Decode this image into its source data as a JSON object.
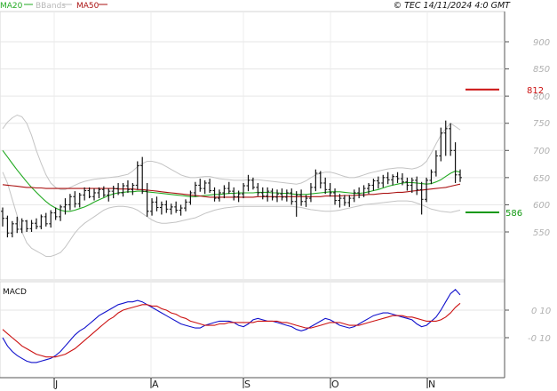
{
  "header": {
    "legend": [
      {
        "label": "MA20",
        "color": "#22aa22"
      },
      {
        "label": "BBands",
        "color": "#b8b8b8"
      },
      {
        "label": "MA50",
        "color": "#aa1111"
      }
    ],
    "copyright": "© TEC 14/11/2024 4:0 GMT"
  },
  "price_panel": {
    "y_ticks": [
      "900",
      "850",
      "800",
      "750",
      "700",
      "650",
      "600",
      "550"
    ],
    "resistance": {
      "label": "812",
      "value": 812,
      "color": "#cc1111"
    },
    "support": {
      "label": "586",
      "value": 586,
      "color": "#119911"
    }
  },
  "macd_panel": {
    "title": "MACD",
    "y_ticks": [
      "0 10",
      "-0 10"
    ]
  },
  "x_axis": {
    "months": [
      "J",
      "A",
      "S",
      "O",
      "N"
    ]
  },
  "chart_data": [
    {
      "type": "candlestick",
      "ylim": [
        470,
        980
      ],
      "grid": true,
      "legend_placement": "top-left",
      "months": [
        "J",
        "A",
        "S",
        "O",
        "N"
      ],
      "ohlc": [
        [
          588,
          595,
          560,
          575
        ],
        [
          575,
          580,
          540,
          548
        ],
        [
          548,
          570,
          540,
          565
        ],
        [
          565,
          578,
          548,
          555
        ],
        [
          555,
          575,
          548,
          570
        ],
        [
          570,
          572,
          550,
          556
        ],
        [
          556,
          572,
          550,
          566
        ],
        [
          566,
          575,
          555,
          560
        ],
        [
          560,
          582,
          555,
          578
        ],
        [
          578,
          585,
          560,
          565
        ],
        [
          565,
          590,
          558,
          585
        ],
        [
          585,
          595,
          572,
          578
        ],
        [
          578,
          600,
          570,
          596
        ],
        [
          596,
          612,
          582,
          600
        ],
        [
          600,
          620,
          590,
          615
        ],
        [
          615,
          625,
          595,
          602
        ],
        [
          602,
          622,
          595,
          618
        ],
        [
          618,
          632,
          608,
          626
        ],
        [
          626,
          632,
          612,
          615
        ],
        [
          615,
          630,
          608,
          622
        ],
        [
          622,
          632,
          612,
          628
        ],
        [
          628,
          634,
          614,
          618
        ],
        [
          618,
          630,
          606,
          625
        ],
        [
          625,
          635,
          612,
          630
        ],
        [
          630,
          640,
          618,
          622
        ],
        [
          622,
          640,
          615,
          635
        ],
        [
          635,
          645,
          622,
          628
        ],
        [
          628,
          640,
          618,
          636
        ],
        [
          636,
          680,
          628,
          672
        ],
        [
          672,
          688,
          620,
          625
        ],
        [
          625,
          640,
          578,
          588
        ],
        [
          588,
          612,
          580,
          605
        ],
        [
          605,
          615,
          588,
          595
        ],
        [
          595,
          606,
          582,
          600
        ],
        [
          600,
          608,
          585,
          592
        ],
        [
          592,
          602,
          582,
          596
        ],
        [
          596,
          606,
          585,
          590
        ],
        [
          590,
          600,
          580,
          594
        ],
        [
          594,
          610,
          588,
          605
        ],
        [
          605,
          626,
          600,
          622
        ],
        [
          622,
          642,
          615,
          636
        ],
        [
          636,
          648,
          624,
          630
        ],
        [
          630,
          645,
          620,
          640
        ],
        [
          640,
          648,
          622,
          626
        ],
        [
          626,
          632,
          606,
          612
        ],
        [
          612,
          628,
          606,
          622
        ],
        [
          622,
          636,
          612,
          630
        ],
        [
          630,
          642,
          620,
          625
        ],
        [
          625,
          632,
          608,
          615
        ],
        [
          615,
          626,
          605,
          620
        ],
        [
          620,
          640,
          612,
          635
        ],
        [
          635,
          655,
          625,
          645
        ],
        [
          645,
          650,
          628,
          632
        ],
        [
          632,
          640,
          616,
          622
        ],
        [
          622,
          632,
          610,
          616
        ],
        [
          616,
          632,
          606,
          625
        ],
        [
          625,
          630,
          608,
          614
        ],
        [
          614,
          628,
          605,
          620
        ],
        [
          620,
          630,
          608,
          614
        ],
        [
          614,
          628,
          606,
          622
        ],
        [
          622,
          630,
          600,
          606
        ],
        [
          606,
          625,
          578,
          618
        ],
        [
          618,
          628,
          598,
          606
        ],
        [
          606,
          618,
          596,
          612
        ],
        [
          612,
          640,
          605,
          632
        ],
        [
          632,
          665,
          625,
          658
        ],
        [
          658,
          662,
          630,
          640
        ],
        [
          640,
          650,
          620,
          628
        ],
        [
          628,
          640,
          615,
          622
        ],
        [
          622,
          630,
          600,
          608
        ],
        [
          608,
          620,
          595,
          612
        ],
        [
          612,
          618,
          598,
          604
        ],
        [
          604,
          618,
          596,
          612
        ],
        [
          612,
          628,
          605,
          622
        ],
        [
          622,
          632,
          612,
          618
        ],
        [
          618,
          636,
          614,
          630
        ],
        [
          630,
          640,
          620,
          636
        ],
        [
          636,
          648,
          626,
          644
        ],
        [
          644,
          652,
          630,
          640
        ],
        [
          640,
          655,
          632,
          650
        ],
        [
          650,
          660,
          638,
          646
        ],
        [
          646,
          656,
          636,
          652
        ],
        [
          652,
          660,
          640,
          648
        ],
        [
          648,
          658,
          636,
          642
        ],
        [
          642,
          650,
          626,
          636
        ],
        [
          636,
          650,
          622,
          645
        ],
        [
          645,
          652,
          618,
          628
        ],
        [
          628,
          642,
          582,
          610
        ],
        [
          610,
          650,
          605,
          645
        ],
        [
          645,
          665,
          638,
          660
        ],
        [
          660,
          700,
          652,
          690
        ],
        [
          690,
          742,
          680,
          732
        ],
        [
          732,
          755,
          690,
          740
        ],
        [
          740,
          750,
          690,
          700
        ],
        [
          700,
          715,
          640,
          655
        ],
        [
          655,
          665,
          642,
          650
        ]
      ],
      "series": [
        {
          "name": "MA20",
          "values": [
            700,
            688,
            676,
            664,
            653,
            642,
            632,
            623,
            614,
            606,
            599,
            594,
            590,
            588,
            588,
            590,
            593,
            596,
            600,
            605,
            609,
            613,
            617,
            620,
            622,
            623,
            624,
            624,
            625,
            625,
            624,
            623,
            622,
            621,
            620,
            619,
            618,
            617,
            616,
            615,
            615,
            616,
            617,
            618,
            619,
            619,
            620,
            621,
            621,
            622,
            622,
            622,
            622,
            623,
            623,
            623,
            622,
            622,
            621,
            621,
            620,
            619,
            619,
            619,
            620,
            621,
            622,
            623,
            624,
            624,
            624,
            623,
            622,
            621,
            621,
            622,
            624,
            626,
            628,
            631,
            634,
            636,
            638,
            640,
            641,
            641,
            640,
            639,
            638,
            639,
            642,
            646,
            652,
            658,
            662,
            660
          ]
        },
        {
          "name": "MA50",
          "values": [
            637,
            636,
            635,
            634,
            633,
            632,
            632,
            631,
            631,
            630,
            630,
            630,
            630,
            630,
            630,
            630,
            630,
            630,
            630,
            630,
            630,
            630,
            630,
            630,
            629,
            629,
            629,
            629,
            628,
            628,
            627,
            626,
            625,
            624,
            623,
            622,
            621,
            620,
            619,
            618,
            617,
            616,
            615,
            614,
            614,
            614,
            614,
            614,
            614,
            614,
            614,
            614,
            614,
            615,
            615,
            615,
            615,
            615,
            615,
            615,
            615,
            615,
            615,
            615,
            615,
            615,
            615,
            616,
            616,
            616,
            616,
            617,
            617,
            617,
            618,
            618,
            619,
            619,
            620,
            621,
            621,
            622,
            623,
            623,
            624,
            625,
            626,
            627,
            628,
            629,
            630,
            631,
            632,
            634,
            636,
            638
          ]
        },
        {
          "name": "BBands upper",
          "values": [
            740,
            752,
            760,
            765,
            762,
            750,
            728,
            700,
            676,
            655,
            640,
            632,
            628,
            628,
            632,
            636,
            640,
            643,
            645,
            647,
            648,
            649,
            650,
            651,
            652,
            654,
            656,
            662,
            670,
            676,
            680,
            680,
            678,
            675,
            670,
            665,
            660,
            655,
            652,
            650,
            650,
            651,
            652,
            652,
            650,
            648,
            647,
            646,
            645,
            645,
            645,
            646,
            646,
            646,
            645,
            644,
            643,
            642,
            641,
            640,
            639,
            638,
            640,
            644,
            650,
            655,
            658,
            660,
            660,
            658,
            655,
            652,
            650,
            650,
            652,
            655,
            658,
            660,
            662,
            664,
            666,
            667,
            668,
            668,
            667,
            666,
            668,
            672,
            680,
            695,
            712,
            728,
            740,
            750,
            744,
            738
          ]
        },
        {
          "name": "BBands lower",
          "values": [
            660,
            640,
            610,
            580,
            550,
            530,
            520,
            515,
            510,
            505,
            505,
            508,
            512,
            522,
            535,
            548,
            558,
            566,
            572,
            578,
            584,
            590,
            594,
            596,
            597,
            597,
            596,
            594,
            590,
            584,
            578,
            572,
            568,
            566,
            566,
            567,
            568,
            570,
            572,
            574,
            576,
            580,
            584,
            587,
            590,
            592,
            594,
            595,
            596,
            597,
            597,
            597,
            597,
            597,
            597,
            597,
            597,
            597,
            597,
            597,
            597,
            596,
            595,
            593,
            591,
            590,
            589,
            588,
            588,
            589,
            590,
            592,
            594,
            596,
            598,
            600,
            601,
            602,
            603,
            604,
            605,
            606,
            607,
            607,
            607,
            606,
            603,
            600,
            596,
            592,
            590,
            588,
            587,
            586,
            588,
            590
          ]
        }
      ]
    },
    {
      "type": "line",
      "title": "MACD",
      "ylim": [
        -0.3,
        0.3
      ],
      "grid": true,
      "series": [
        {
          "name": "MACD",
          "color": "#1111cc",
          "values": [
            -0.1,
            -0.16,
            -0.2,
            -0.23,
            -0.25,
            -0.27,
            -0.28,
            -0.28,
            -0.27,
            -0.26,
            -0.25,
            -0.23,
            -0.2,
            -0.16,
            -0.12,
            -0.08,
            -0.05,
            -0.03,
            0.0,
            0.03,
            0.06,
            0.08,
            0.1,
            0.12,
            0.14,
            0.15,
            0.16,
            0.16,
            0.17,
            0.16,
            0.14,
            0.12,
            0.1,
            0.08,
            0.06,
            0.04,
            0.02,
            0.0,
            -0.01,
            -0.02,
            -0.03,
            -0.03,
            -0.01,
            0.0,
            0.01,
            0.02,
            0.02,
            0.02,
            0.01,
            -0.01,
            -0.02,
            0.0,
            0.03,
            0.04,
            0.03,
            0.02,
            0.02,
            0.01,
            0.0,
            -0.01,
            -0.02,
            -0.04,
            -0.05,
            -0.04,
            -0.02,
            0.0,
            0.02,
            0.04,
            0.03,
            0.01,
            -0.01,
            -0.02,
            -0.03,
            -0.02,
            0.0,
            0.02,
            0.04,
            0.06,
            0.07,
            0.08,
            0.08,
            0.07,
            0.06,
            0.05,
            0.04,
            0.03,
            0.0,
            -0.02,
            -0.01,
            0.02,
            0.05,
            0.1,
            0.16,
            0.22,
            0.25,
            0.21
          ]
        },
        {
          "name": "Signal",
          "color": "#cc1111",
          "values": [
            -0.04,
            -0.07,
            -0.1,
            -0.13,
            -0.16,
            -0.18,
            -0.2,
            -0.22,
            -0.23,
            -0.24,
            -0.24,
            -0.24,
            -0.23,
            -0.22,
            -0.2,
            -0.18,
            -0.15,
            -0.12,
            -0.09,
            -0.06,
            -0.03,
            0.0,
            0.03,
            0.05,
            0.08,
            0.1,
            0.11,
            0.12,
            0.13,
            0.14,
            0.14,
            0.13,
            0.13,
            0.11,
            0.1,
            0.08,
            0.07,
            0.05,
            0.04,
            0.02,
            0.01,
            0.0,
            -0.01,
            -0.01,
            -0.01,
            0.0,
            0.0,
            0.01,
            0.01,
            0.01,
            0.01,
            0.01,
            0.01,
            0.02,
            0.02,
            0.02,
            0.02,
            0.02,
            0.01,
            0.01,
            0.0,
            -0.01,
            -0.02,
            -0.03,
            -0.03,
            -0.02,
            -0.01,
            0.0,
            0.01,
            0.01,
            0.01,
            0.0,
            -0.01,
            -0.01,
            -0.01,
            0.0,
            0.01,
            0.02,
            0.03,
            0.04,
            0.05,
            0.06,
            0.06,
            0.06,
            0.05,
            0.05,
            0.04,
            0.03,
            0.02,
            0.02,
            0.02,
            0.03,
            0.05,
            0.08,
            0.12,
            0.15
          ]
        }
      ]
    }
  ]
}
